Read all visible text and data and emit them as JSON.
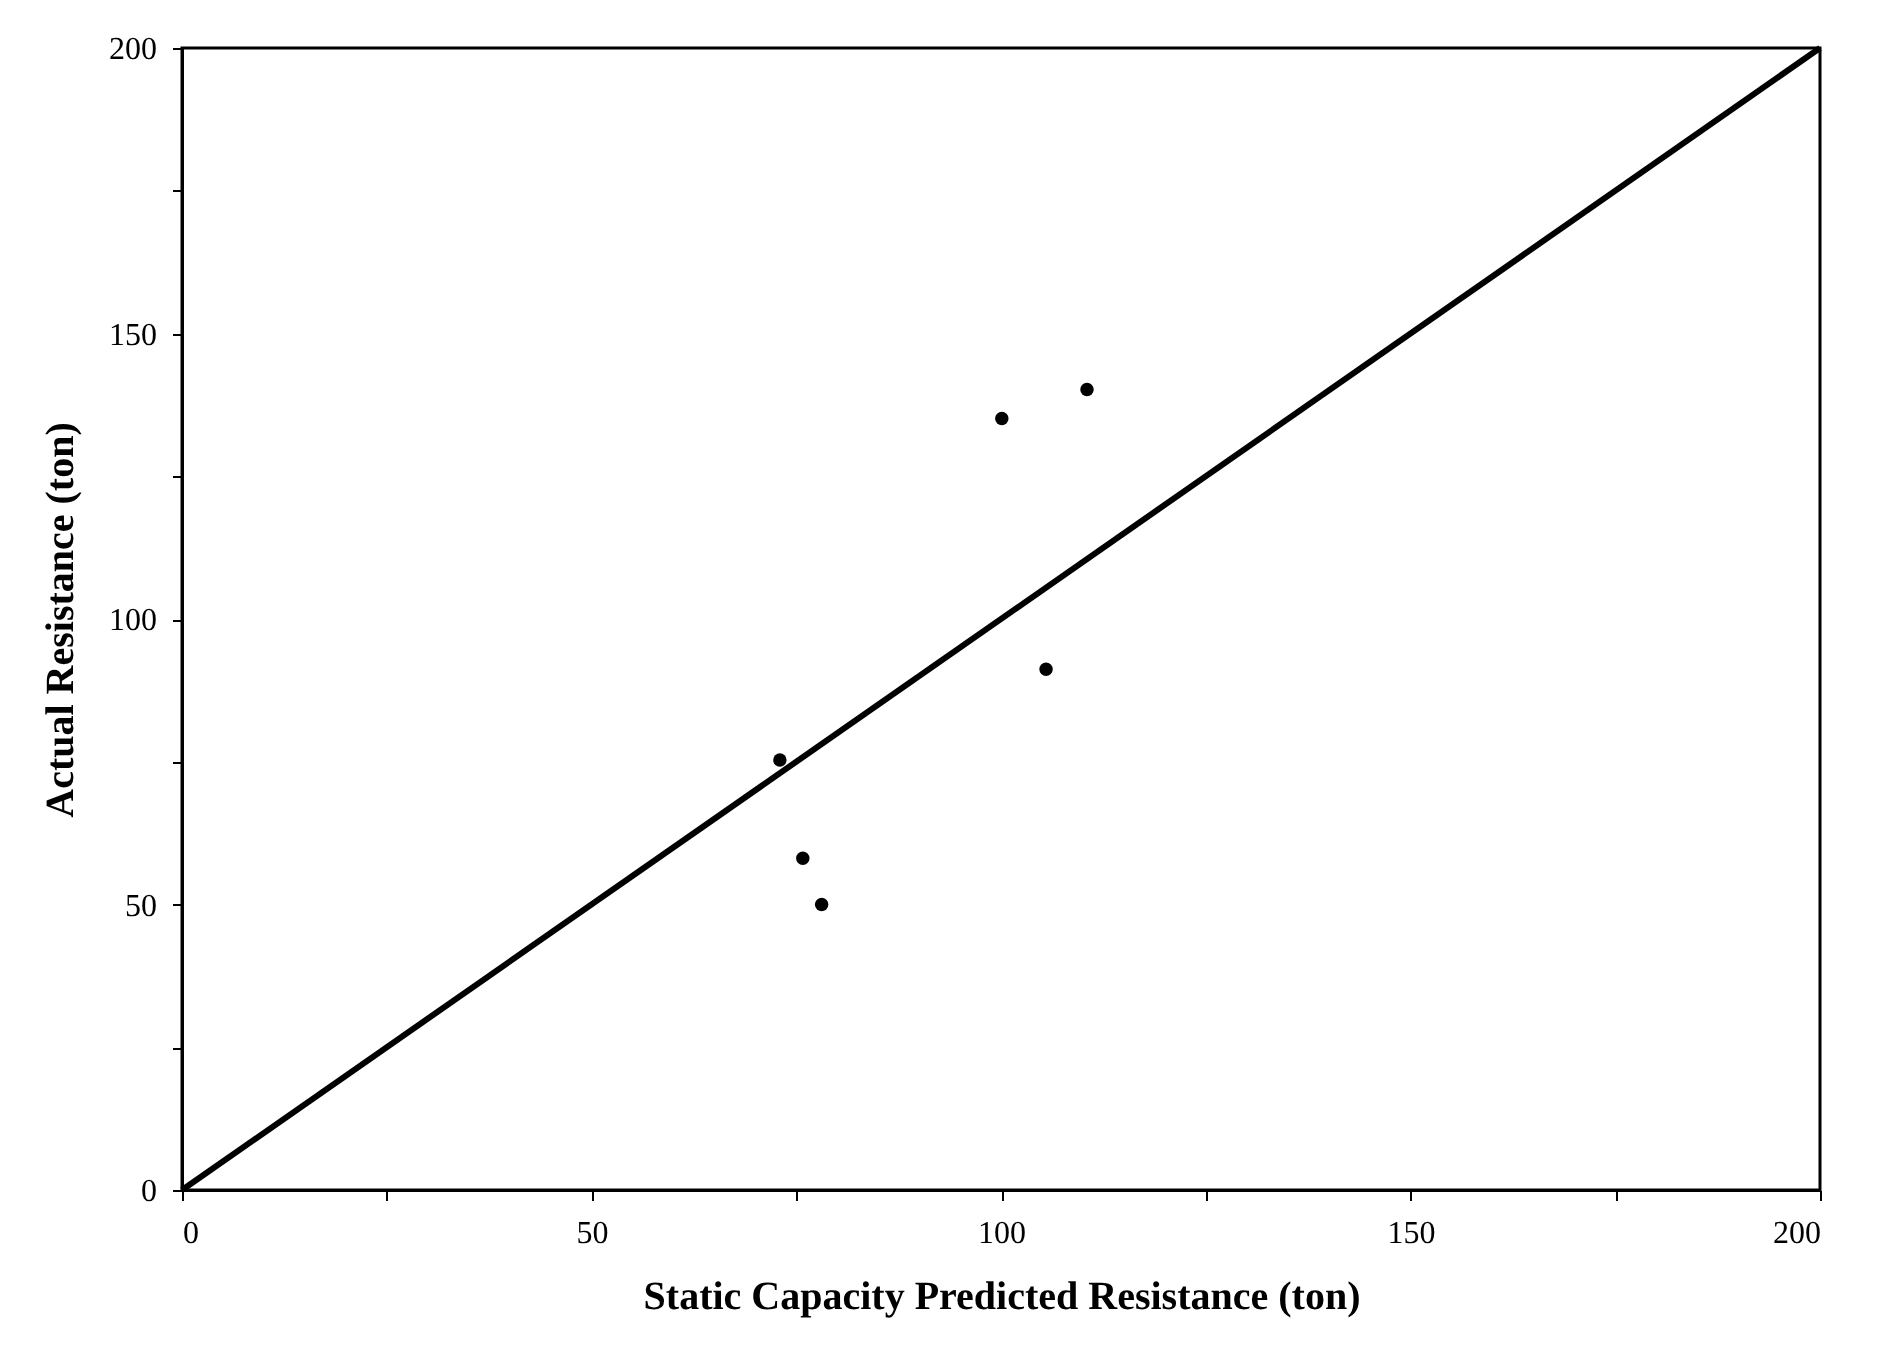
{
  "chart_data": {
    "type": "scatter",
    "xlabel": "Static Capacity Predicted Resistance (ton)",
    "ylabel": "Actual Resistance (ton)",
    "x": [
      73,
      75.8,
      78.1,
      100.1,
      110.5,
      105.5
    ],
    "series": [
      {
        "type": "scatter",
        "color": "#000000",
        "marker": "circle",
        "values": [
          75.3,
          58.1,
          50,
          135.1,
          140.2,
          91.2
        ]
      },
      {
        "type": "line",
        "color": "#000000",
        "x": [
          0,
          200
        ],
        "values": [
          0,
          200
        ],
        "line_style": "solid",
        "marker": "none"
      }
    ],
    "xlim": [
      0,
      200
    ],
    "ylim": [
      0,
      200
    ],
    "xticks": [
      0,
      {
        "value": 25,
        "label": null
      },
      50,
      {
        "value": 75,
        "label": null
      },
      100,
      {
        "value": 125,
        "label": null
      },
      150,
      {
        "value": 175,
        "label": null
      },
      200
    ],
    "yticks": [
      0,
      {
        "value": 25,
        "label": null
      },
      50,
      {
        "value": 75,
        "label": null
      },
      100,
      {
        "value": 125,
        "label": null
      },
      150,
      {
        "value": 175,
        "label": null
      },
      200
    ],
    "grid": false
  }
}
